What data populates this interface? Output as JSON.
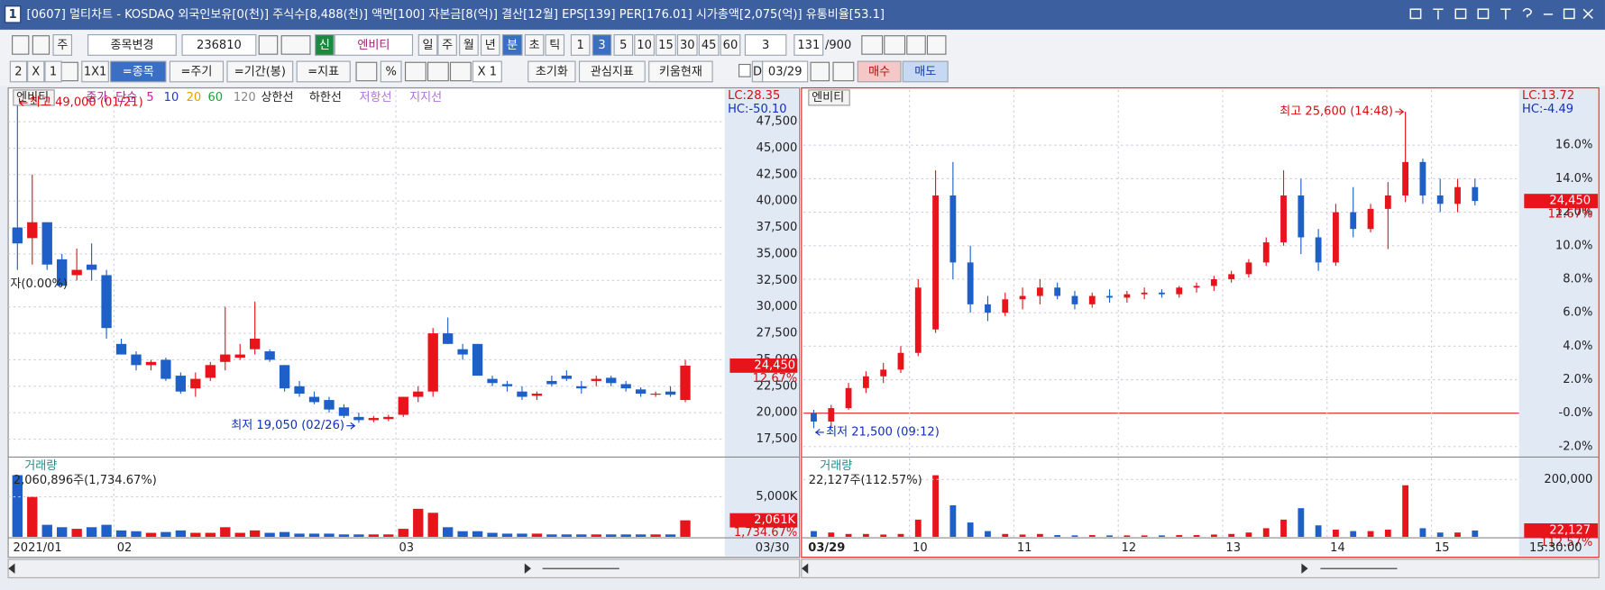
{
  "window": {
    "number": "1",
    "title": "[0607] 멀티차트 - KOSDAQ 외국인보유[0(천)] 주식수[8,488(천)] 액면[100] 자본금[8(억)] 결산[12월] EPS[139] PER[176.01] 시가총액[2,075(억)] 유통비율[53.1]"
  },
  "toolbar1": [
    "주",
    "종목변경",
    "236810",
    "신",
    "엔비티",
    "일",
    "주",
    "월",
    "년",
    "분",
    "초",
    "틱",
    "1",
    "3",
    "5",
    "10",
    "15",
    "30",
    "45",
    "60",
    "3",
    "131",
    "/900"
  ],
  "toolbar2": [
    "2",
    "X",
    "1",
    "1X1",
    "=종목",
    "=주기",
    "=기간(봉)",
    "=지표",
    "%",
    "X 1",
    "초기화",
    "관심지표",
    "키움현재",
    "D",
    "03/29",
    "매수",
    "매도"
  ],
  "left_chart": {
    "name": "엔비티",
    "legend": [
      "종가",
      "단순",
      "5",
      "10",
      "20",
      "60",
      "120",
      "상한선",
      "하한선",
      "저항선",
      "지지선"
    ],
    "note": "자(0.00%)",
    "lc": "LC:28.35",
    "hc": "HC:-50.10",
    "price_box": "24,450",
    "change_box": "12.67%",
    "high_label": "최고 49,000 (01/21)",
    "low_label": "최저 19,050 (02/26)",
    "ylim": [
      16000,
      50500
    ],
    "yticks": [
      {
        "value": 17500,
        "label": "17,500"
      },
      {
        "value": 20000,
        "label": "20,000"
      },
      {
        "value": 22500,
        "label": "22,500"
      },
      {
        "value": 25000,
        "label": "25,000"
      },
      {
        "value": 27500,
        "label": "27,500"
      },
      {
        "value": 30000,
        "label": "30,000"
      },
      {
        "value": 32500,
        "label": "32,500"
      },
      {
        "value": 35000,
        "label": "35,000"
      },
      {
        "value": 37500,
        "label": "37,500"
      },
      {
        "value": 40000,
        "label": "40,000"
      },
      {
        "value": 42500,
        "label": "42,500"
      },
      {
        "value": 45000,
        "label": "45,000"
      },
      {
        "value": 47500,
        "label": "47,500"
      }
    ],
    "categories": [
      "2021/01",
      null,
      null,
      null,
      null,
      null,
      null,
      "02",
      null,
      null,
      null,
      null,
      null,
      null,
      null,
      null,
      null,
      null,
      null,
      null,
      null,
      null,
      null,
      null,
      null,
      null,
      "03",
      null,
      null,
      null,
      null,
      null,
      null,
      null,
      null,
      null,
      null,
      null,
      null,
      null,
      null,
      null,
      null,
      null,
      null,
      null
    ],
    "end_date": "03/30",
    "candles": {
      "open": [
        37500,
        36500,
        38000,
        34500,
        33000,
        34000,
        33000,
        26500,
        25500,
        24500,
        25000,
        23500,
        22300,
        23300,
        24800,
        25200,
        26000,
        25800,
        24500,
        22500,
        21500,
        21200,
        20500,
        19600,
        19300,
        19400,
        19800,
        21500,
        22000,
        27500,
        26000,
        26500,
        23200,
        22700,
        22000,
        21600,
        23000,
        23500,
        22500,
        23000,
        23300,
        22700,
        22200,
        21700,
        22000,
        21200
      ],
      "high": [
        49000,
        42500,
        38000,
        35000,
        35500,
        36000,
        33500,
        27000,
        25800,
        25000,
        25200,
        23800,
        23800,
        24800,
        30000,
        26500,
        30500,
        26000,
        24500,
        23000,
        22000,
        21500,
        20800,
        20000,
        19700,
        19800,
        21500,
        22500,
        28000,
        29000,
        26500,
        26500,
        23500,
        23000,
        22500,
        22000,
        23500,
        24000,
        23000,
        23500,
        23500,
        23000,
        22400,
        22000,
        22500,
        25000
      ],
      "low": [
        33500,
        34000,
        33500,
        32000,
        32500,
        32500,
        27000,
        25500,
        24000,
        24000,
        23000,
        21800,
        21500,
        23000,
        24000,
        25000,
        25500,
        24800,
        22000,
        21500,
        20800,
        20000,
        19500,
        19050,
        19100,
        19200,
        19600,
        21000,
        21500,
        26500,
        25000,
        23500,
        22500,
        22000,
        21200,
        21200,
        22500,
        23000,
        21800,
        22500,
        22500,
        22000,
        21500,
        21500,
        21500,
        21000
      ],
      "close": [
        36000,
        38000,
        34000,
        32000,
        33500,
        33500,
        28000,
        25500,
        24500,
        24800,
        23200,
        22000,
        23200,
        24500,
        25500,
        25500,
        27000,
        25000,
        22300,
        21800,
        21000,
        20300,
        19700,
        19300,
        19500,
        19600,
        21500,
        22000,
        27500,
        26500,
        25500,
        23500,
        22800,
        22500,
        21500,
        21800,
        22700,
        23200,
        22300,
        23200,
        22800,
        22300,
        21800,
        21800,
        21700,
        24450
      ]
    },
    "volume": {
      "title": "거래량",
      "summary": "2,060,896주(1,734.67%)",
      "value_box": "2,061K",
      "change_box": "1,734.67%",
      "ylim": [
        0,
        8300
      ],
      "yticks": [
        {
          "value": 5000,
          "label": "5,000K"
        }
      ],
      "values": [
        7700,
        5000,
        1500,
        1200,
        1000,
        1200,
        1500,
        800,
        700,
        500,
        600,
        800,
        500,
        500,
        1200,
        500,
        800,
        500,
        600,
        400,
        400,
        400,
        300,
        300,
        300,
        300,
        1000,
        3500,
        3000,
        1200,
        700,
        700,
        500,
        400,
        400,
        400,
        300,
        300,
        300,
        300,
        300,
        300,
        300,
        300,
        300,
        2061
      ]
    }
  },
  "right_chart": {
    "name": "엔비티",
    "lc": "LC:13.72",
    "hc": "HC:-4.49",
    "price_box": "24,450",
    "change_box": "12.67%",
    "high_label": "최고 25,600 (14:48)",
    "low_label": "최저 21,500 (09:12)",
    "ylim": [
      -2.5,
      19.3
    ],
    "yticks": [
      {
        "value": -2,
        "label": "-2.0%"
      },
      {
        "value": 0,
        "label": "-0.0%"
      },
      {
        "value": 2,
        "label": "2.0%"
      },
      {
        "value": 4,
        "label": "4.0%"
      },
      {
        "value": 6,
        "label": "6.0%"
      },
      {
        "value": 8,
        "label": "8.0%"
      },
      {
        "value": 10,
        "label": "10.0%"
      },
      {
        "value": 12,
        "label": "12.0%"
      },
      {
        "value": 14,
        "label": "14.0%"
      },
      {
        "value": 16,
        "label": "16.0%"
      }
    ],
    "categories": [
      "03/29",
      null,
      null,
      null,
      null,
      null,
      "10",
      null,
      null,
      null,
      null,
      null,
      "11",
      null,
      null,
      null,
      null,
      null,
      "12",
      null,
      null,
      null,
      null,
      null,
      "13",
      null,
      null,
      null,
      null,
      null,
      "14",
      null,
      null,
      null,
      null,
      null,
      "15",
      null,
      null
    ],
    "end_time": "15:30:00",
    "candles": {
      "open": [
        0,
        -0.5,
        0.3,
        1.5,
        2.2,
        2.6,
        3.6,
        5.0,
        13.0,
        9.0,
        6.5,
        6.0,
        6.8,
        7.0,
        7.5,
        7.0,
        6.5,
        7.0,
        6.9,
        7.1,
        7.2,
        7.1,
        7.5,
        7.6,
        8.0,
        8.3,
        9.0,
        10.2,
        13.0,
        10.5,
        9.0,
        12.0,
        11.0,
        12.2,
        13.0,
        15.0,
        13.0,
        12.5,
        13.5
      ],
      "high": [
        0.2,
        0.5,
        1.8,
        2.5,
        3.0,
        4.0,
        8.0,
        14.5,
        15.0,
        10.0,
        7.0,
        7.2,
        7.5,
        8.0,
        7.8,
        7.3,
        7.2,
        7.4,
        7.3,
        7.5,
        7.4,
        7.6,
        7.8,
        8.2,
        8.5,
        9.2,
        10.5,
        14.5,
        14.0,
        11.0,
        12.5,
        13.5,
        12.5,
        13.8,
        18.0,
        15.2,
        14.0,
        14.0,
        14.0
      ],
      "low": [
        -0.9,
        -0.9,
        0.2,
        1.2,
        1.8,
        2.4,
        3.4,
        4.8,
        8.0,
        6.0,
        5.5,
        5.8,
        6.2,
        6.5,
        6.8,
        6.2,
        6.3,
        6.6,
        6.6,
        6.8,
        6.9,
        6.9,
        7.2,
        7.3,
        7.8,
        8.1,
        8.8,
        10.0,
        9.5,
        8.5,
        8.8,
        10.5,
        10.8,
        9.8,
        12.6,
        12.5,
        12.0,
        12.0,
        12.4
      ],
      "close": [
        -0.5,
        0.3,
        1.5,
        2.2,
        2.6,
        3.6,
        7.5,
        13.0,
        9.0,
        6.5,
        6.0,
        6.8,
        7.0,
        7.5,
        7.0,
        6.5,
        7.0,
        6.9,
        7.1,
        7.2,
        7.1,
        7.5,
        7.6,
        8.0,
        8.3,
        9.0,
        10.2,
        13.0,
        10.5,
        9.0,
        12.0,
        11.0,
        12.2,
        13.0,
        15.0,
        13.0,
        12.5,
        13.5,
        12.67
      ]
    },
    "volume": {
      "title": "거래량",
      "summary": "22,127주(112.57%)",
      "value_box": "22,127",
      "change_box": "112.57%",
      "ylim": [
        0,
        232000
      ],
      "yticks": [
        {
          "value": 200000,
          "label": "200,000"
        }
      ],
      "values": [
        20000,
        15000,
        10000,
        10000,
        8000,
        10000,
        60000,
        215000,
        110000,
        50000,
        20000,
        10000,
        8000,
        10000,
        6000,
        5000,
        6000,
        5000,
        5000,
        5000,
        5000,
        6000,
        6000,
        8000,
        10000,
        15000,
        30000,
        60000,
        100000,
        40000,
        25000,
        20000,
        20000,
        25000,
        180000,
        30000,
        15000,
        15000,
        22127
      ]
    }
  }
}
